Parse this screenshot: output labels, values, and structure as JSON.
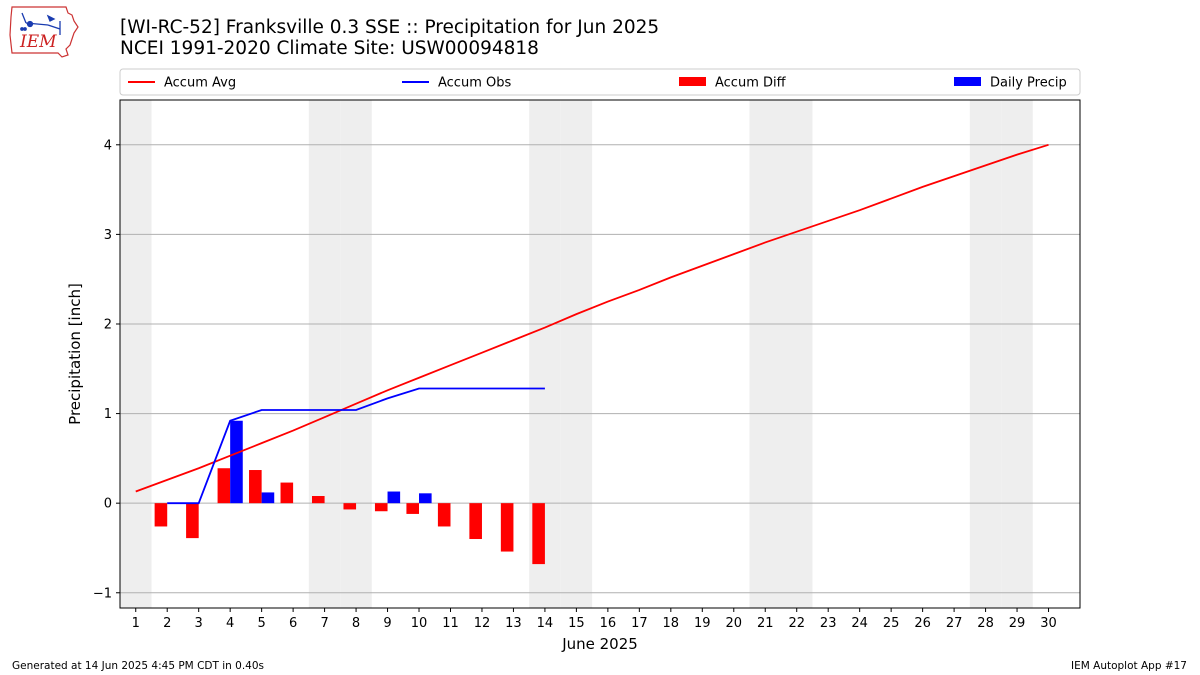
{
  "header": {
    "title_line1": "[WI-RC-52] Franksville 0.3 SSE :: Precipitation for Jun 2025",
    "title_line2": "NCEI 1991-2020 Climate Site: USW00094818"
  },
  "logo": {
    "text": "IEM"
  },
  "footer": {
    "generated": "Generated at 14 Jun 2025 4:45 PM CDT in 0.40s",
    "app": "IEM Autoplot App #17"
  },
  "colors": {
    "avg": "#ff0000",
    "obs": "#0000ff",
    "diff": "#ff0000",
    "daily": "#0000ff",
    "weekend": "#eeeeee",
    "grid": "#b0b0b0"
  },
  "chart_data": {
    "type": "bar",
    "xlabel": "June 2025",
    "ylabel": "Precipitation [inch]",
    "xlim": [
      0.5,
      31
    ],
    "ylim": [
      -1.17,
      4.5
    ],
    "yticks": [
      -1,
      0,
      1,
      2,
      3,
      4
    ],
    "days": [
      1,
      2,
      3,
      4,
      5,
      6,
      7,
      8,
      9,
      10,
      11,
      12,
      13,
      14,
      15,
      16,
      17,
      18,
      19,
      20,
      21,
      22,
      23,
      24,
      25,
      26,
      27,
      28,
      29,
      30
    ],
    "weekend_days": [
      1,
      7,
      8,
      14,
      15,
      21,
      22,
      28,
      29
    ],
    "grid": "y-major",
    "legend": {
      "placement": "top",
      "entries": [
        "Accum Avg",
        "Accum Obs",
        "Accum Diff",
        "Daily Precip"
      ]
    },
    "series": [
      {
        "name": "Accum Avg",
        "kind": "line",
        "x": [
          1,
          2,
          3,
          4,
          5,
          6,
          7,
          8,
          9,
          10,
          11,
          12,
          13,
          14,
          15,
          16,
          17,
          18,
          19,
          20,
          21,
          22,
          23,
          24,
          25,
          26,
          27,
          28,
          29,
          30
        ],
        "values": [
          0.13,
          0.26,
          0.39,
          0.53,
          0.67,
          0.81,
          0.96,
          1.11,
          1.26,
          1.4,
          1.54,
          1.68,
          1.82,
          1.96,
          2.11,
          2.25,
          2.38,
          2.52,
          2.65,
          2.78,
          2.91,
          3.03,
          3.15,
          3.27,
          3.4,
          3.53,
          3.65,
          3.77,
          3.89,
          4.0
        ]
      },
      {
        "name": "Accum Obs",
        "kind": "line",
        "x": [
          2,
          3,
          4,
          5,
          6,
          7,
          8,
          9,
          10,
          11,
          12,
          13,
          14
        ],
        "values": [
          0.0,
          0.0,
          0.92,
          1.04,
          1.04,
          1.04,
          1.04,
          1.17,
          1.28,
          1.28,
          1.28,
          1.28,
          1.28
        ]
      },
      {
        "name": "Accum Diff",
        "kind": "bar",
        "x": [
          2,
          3,
          4,
          5,
          6,
          7,
          8,
          9,
          10,
          11,
          12,
          13,
          14
        ],
        "values": [
          -0.26,
          -0.39,
          0.39,
          0.37,
          0.23,
          0.08,
          -0.07,
          -0.09,
          -0.12,
          -0.26,
          -0.4,
          -0.54,
          -0.68
        ]
      },
      {
        "name": "Daily Precip",
        "kind": "bar",
        "x": [
          2,
          3,
          4,
          5,
          6,
          7,
          8,
          9,
          10,
          11,
          12,
          13,
          14
        ],
        "values": [
          0.0,
          0.0,
          0.92,
          0.12,
          0.0,
          0.0,
          0.0,
          0.13,
          0.11,
          0.0,
          0.0,
          0.0,
          0.0
        ]
      }
    ]
  }
}
